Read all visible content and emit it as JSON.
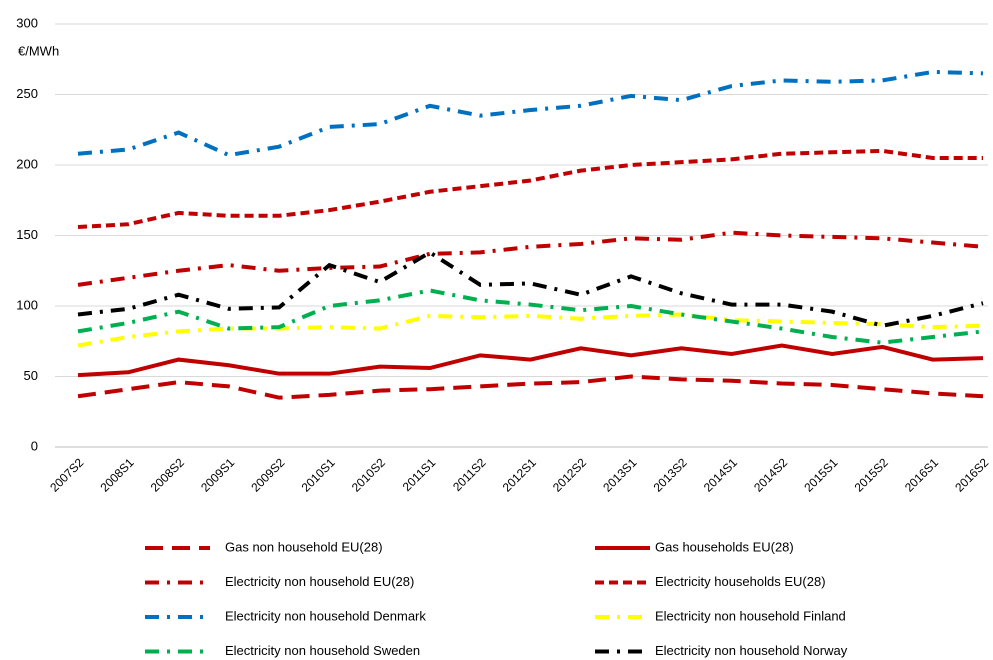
{
  "chart_data": {
    "type": "line",
    "y_unit_label": "€/MWh",
    "categories": [
      "2007S2",
      "2008S1",
      "2008S2",
      "2009S1",
      "2009S2",
      "2010S1",
      "2010S2",
      "2011S1",
      "2011S2",
      "2012S1",
      "2012S2",
      "2013S1",
      "2013S2",
      "2014S1",
      "2014S2",
      "2015S1",
      "2015S2",
      "2016S1",
      "2016S2"
    ],
    "ylim": [
      0,
      300
    ],
    "yticks": [
      0,
      50,
      100,
      150,
      200,
      250,
      300
    ],
    "grid": true,
    "series": [
      {
        "name": "Gas non household EU(28)",
        "color": "#c00000",
        "dash": "long-dash",
        "values": [
          36,
          41,
          46,
          43,
          35,
          37,
          40,
          41,
          43,
          45,
          46,
          50,
          48,
          47,
          45,
          44,
          41,
          38,
          36
        ]
      },
      {
        "name": "Gas households EU(28)",
        "color": "#c00000",
        "dash": "solid",
        "values": [
          51,
          53,
          62,
          58,
          52,
          52,
          57,
          56,
          65,
          62,
          70,
          65,
          70,
          66,
          72,
          66,
          71,
          62,
          63
        ]
      },
      {
        "name": "Electricity non household EU(28)",
        "color": "#c00000",
        "dash": "dash-dot",
        "values": [
          115,
          120,
          125,
          129,
          125,
          127,
          128,
          137,
          138,
          142,
          144,
          148,
          147,
          152,
          150,
          149,
          148,
          145,
          142
        ]
      },
      {
        "name": "Electricity households EU(28)",
        "color": "#c00000",
        "dash": "dash",
        "values": [
          156,
          158,
          166,
          164,
          164,
          168,
          174,
          181,
          185,
          189,
          196,
          200,
          202,
          204,
          208,
          209,
          210,
          205,
          205
        ]
      },
      {
        "name": "Electricity non household Denmark",
        "color": "#0070c0",
        "dash": "dash-dot",
        "values": [
          208,
          211,
          223,
          207,
          213,
          227,
          229,
          242,
          235,
          239,
          242,
          249,
          246,
          256,
          260,
          259,
          260,
          266,
          265
        ]
      },
      {
        "name": "Electricity non household Finland",
        "color": "#ffff00",
        "dash": "dash-dot",
        "values": [
          72,
          78,
          82,
          84,
          84,
          85,
          84,
          93,
          92,
          93,
          91,
          93,
          94,
          90,
          89,
          88,
          87,
          85,
          86
        ]
      },
      {
        "name": "Electricity non household Sweden",
        "color": "#00b050",
        "dash": "dash-dot",
        "values": [
          82,
          88,
          96,
          84,
          85,
          100,
          104,
          111,
          104,
          101,
          97,
          100,
          94,
          89,
          84,
          78,
          74,
          78,
          82
        ]
      },
      {
        "name": "Electricity non household Norway",
        "color": "#000000",
        "dash": "dash-dot",
        "values": [
          94,
          98,
          108,
          98,
          99,
          129,
          117,
          138,
          115,
          116,
          108,
          121,
          109,
          101,
          101,
          96,
          86,
          93,
          102
        ]
      }
    ]
  }
}
